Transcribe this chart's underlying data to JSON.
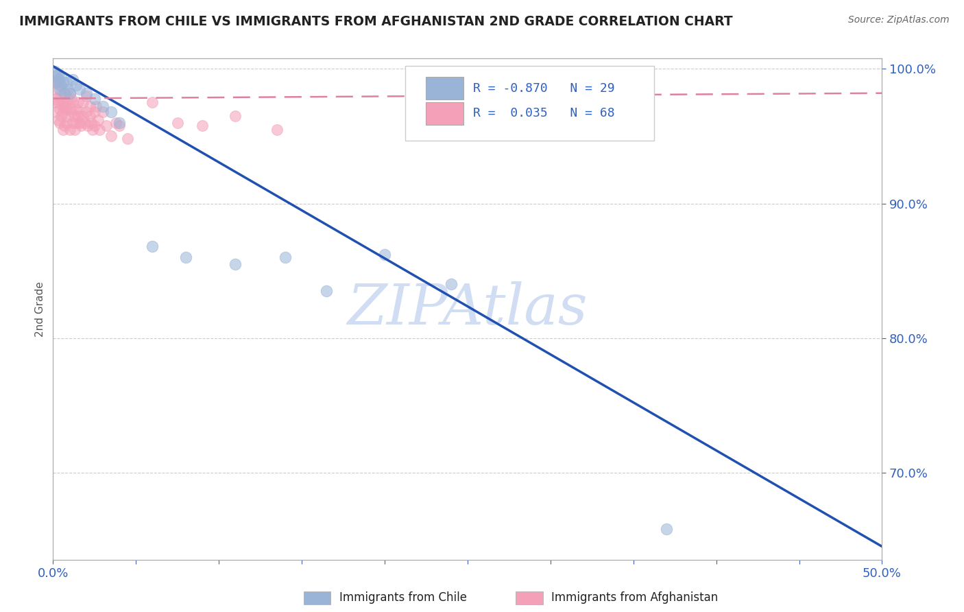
{
  "title": "IMMIGRANTS FROM CHILE VS IMMIGRANTS FROM AFGHANISTAN 2ND GRADE CORRELATION CHART",
  "source": "Source: ZipAtlas.com",
  "ylabel": "2nd Grade",
  "xlim": [
    0.0,
    0.5
  ],
  "ylim": [
    0.635,
    1.008
  ],
  "xtick_vals": [
    0.0,
    0.05,
    0.1,
    0.15,
    0.2,
    0.25,
    0.3,
    0.35,
    0.4,
    0.45,
    0.5
  ],
  "xticklabels": [
    "0.0%",
    "",
    "",
    "",
    "",
    "",
    "",
    "",
    "",
    "",
    "50.0%"
  ],
  "yticks_right": [
    0.7,
    0.8,
    0.9,
    1.0
  ],
  "yticklabels_right": [
    "70.0%",
    "80.0%",
    "90.0%",
    "100.0%"
  ],
  "chile_color": "#9ab4d8",
  "afghanistan_color": "#f4a0b8",
  "chile_R": -0.87,
  "chile_N": 29,
  "afghanistan_R": 0.035,
  "afghanistan_N": 68,
  "watermark": "ZIPAtlas",
  "watermark_color": "#c8d8f0",
  "legend_blue_color": "#3060c0",
  "chile_trendline_color": "#2050b0",
  "afghanistan_trendline_color": "#e080a0",
  "grid_color": "#cccccc",
  "background_color": "#ffffff",
  "chile_trendline_x0": 0.0,
  "chile_trendline_y0": 1.002,
  "chile_trendline_x1": 0.5,
  "chile_trendline_y1": 0.645,
  "afghanistan_trendline_x0": 0.0,
  "afghanistan_trendline_y0": 0.978,
  "afghanistan_trendline_x1": 0.5,
  "afghanistan_trendline_y1": 0.982,
  "chile_scatter_x": [
    0.001,
    0.002,
    0.002,
    0.003,
    0.003,
    0.004,
    0.004,
    0.005,
    0.006,
    0.007,
    0.008,
    0.009,
    0.01,
    0.012,
    0.014,
    0.016,
    0.02,
    0.025,
    0.03,
    0.035,
    0.04,
    0.06,
    0.08,
    0.11,
    0.14,
    0.165,
    0.2,
    0.24,
    0.37
  ],
  "chile_scatter_y": [
    0.998,
    0.995,
    0.99,
    0.992,
    0.996,
    0.988,
    0.985,
    0.994,
    0.99,
    0.982,
    0.99,
    0.985,
    0.982,
    0.992,
    0.988,
    0.985,
    0.982,
    0.978,
    0.972,
    0.968,
    0.96,
    0.868,
    0.86,
    0.855,
    0.86,
    0.835,
    0.862,
    0.84,
    0.658
  ],
  "afghanistan_scatter_x": [
    0.001,
    0.001,
    0.002,
    0.002,
    0.002,
    0.003,
    0.003,
    0.003,
    0.004,
    0.004,
    0.004,
    0.005,
    0.005,
    0.005,
    0.006,
    0.006,
    0.006,
    0.007,
    0.007,
    0.007,
    0.008,
    0.008,
    0.008,
    0.009,
    0.009,
    0.01,
    0.01,
    0.01,
    0.011,
    0.011,
    0.012,
    0.012,
    0.013,
    0.013,
    0.014,
    0.014,
    0.015,
    0.015,
    0.016,
    0.016,
    0.017,
    0.018,
    0.018,
    0.019,
    0.02,
    0.02,
    0.021,
    0.022,
    0.022,
    0.023,
    0.024,
    0.025,
    0.025,
    0.026,
    0.027,
    0.028,
    0.03,
    0.032,
    0.035,
    0.038,
    0.04,
    0.045,
    0.06,
    0.075,
    0.09,
    0.11,
    0.135,
    0.285
  ],
  "afghanistan_scatter_y": [
    0.99,
    0.975,
    0.985,
    0.968,
    0.978,
    0.992,
    0.962,
    0.975,
    0.98,
    0.96,
    0.97,
    0.988,
    0.965,
    0.978,
    0.972,
    0.955,
    0.968,
    0.982,
    0.958,
    0.972,
    0.975,
    0.96,
    0.97,
    0.965,
    0.978,
    0.97,
    0.955,
    0.982,
    0.968,
    0.978,
    0.96,
    0.975,
    0.965,
    0.955,
    0.97,
    0.96,
    0.975,
    0.965,
    0.96,
    0.968,
    0.958,
    0.965,
    0.975,
    0.96,
    0.968,
    0.98,
    0.958,
    0.965,
    0.972,
    0.96,
    0.955,
    0.968,
    0.958,
    0.972,
    0.962,
    0.955,
    0.968,
    0.958,
    0.95,
    0.96,
    0.958,
    0.948,
    0.975,
    0.96,
    0.958,
    0.965,
    0.955,
    0.978
  ]
}
